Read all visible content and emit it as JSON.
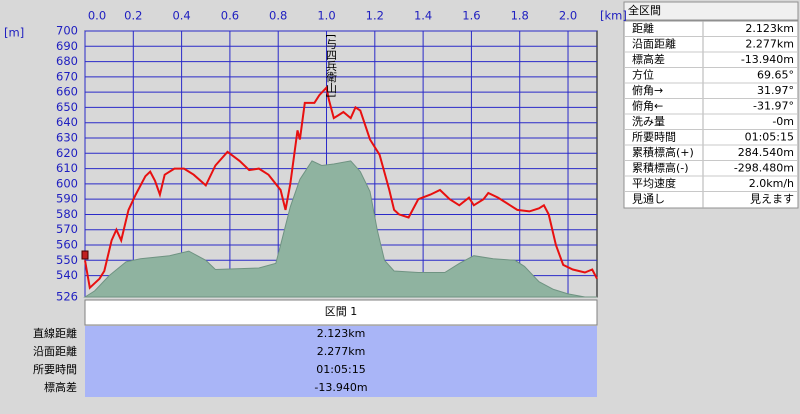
{
  "chart_data": {
    "type": "line",
    "x_unit": "[km]",
    "y_unit": "[m]",
    "xlim": [
      0,
      2.12
    ],
    "ylim": [
      526,
      700
    ],
    "xticks": [
      {
        "value": 0,
        "label": "0.0"
      },
      0.2,
      0.4,
      0.6,
      0.8,
      {
        "value": 1,
        "label": "1.0"
      },
      1.2,
      1.4,
      1.6,
      1.8,
      {
        "value": 2,
        "label": "2.0"
      }
    ],
    "yticks": [
      526,
      540,
      550,
      560,
      570,
      580,
      590,
      600,
      610,
      620,
      630,
      640,
      650,
      660,
      670,
      680,
      690,
      700
    ],
    "grid": true,
    "series": [
      {
        "color": "#8fb3a0",
        "fill": true,
        "x": [
          0,
          0.04,
          0.1,
          0.17,
          0.23,
          0.35,
          0.43,
          0.5,
          0.54,
          0.72,
          0.79,
          0.81,
          0.85,
          0.89,
          0.94,
          0.98,
          1.03,
          1.1,
          1.14,
          1.18,
          1.21,
          1.24,
          1.28,
          1.38,
          1.49,
          1.55,
          1.61,
          1.69,
          1.78,
          1.82,
          1.88,
          1.94,
          2.0,
          2.07,
          2.12
        ],
        "values": [
          526,
          530,
          540,
          549,
          551,
          553,
          556,
          550,
          544,
          545,
          548,
          560,
          585,
          603,
          615,
          612,
          613,
          615,
          608,
          595,
          570,
          550,
          543,
          542,
          542,
          548,
          553,
          551,
          550,
          546,
          536,
          531,
          528,
          526,
          526
        ]
      },
      {
        "color": "#e81010",
        "fill": false,
        "x": [
          0,
          0.02,
          0.04,
          0.06,
          0.08,
          0.11,
          0.13,
          0.15,
          0.18,
          0.21,
          0.25,
          0.27,
          0.29,
          0.31,
          0.33,
          0.37,
          0.41,
          0.45,
          0.5,
          0.54,
          0.59,
          0.64,
          0.68,
          0.72,
          0.76,
          0.81,
          0.83,
          0.85,
          0.88,
          0.89,
          0.91,
          0.95,
          0.97,
          1.0,
          1.01,
          1.03,
          1.05,
          1.07,
          1.1,
          1.12,
          1.14,
          1.18,
          1.22,
          1.26,
          1.28,
          1.3,
          1.34,
          1.38,
          1.43,
          1.47,
          1.51,
          1.55,
          1.59,
          1.61,
          1.65,
          1.67,
          1.71,
          1.76,
          1.79,
          1.84,
          1.88,
          1.9,
          1.92,
          1.95,
          1.98,
          2.02,
          2.07,
          2.1,
          2.12
        ],
        "values": [
          550,
          532,
          535,
          538,
          543,
          563,
          570,
          563,
          583,
          593,
          605,
          608,
          602,
          593,
          606,
          610,
          610,
          606,
          599,
          612,
          621,
          615,
          609,
          610,
          606,
          596,
          583,
          600,
          635,
          629,
          653,
          653,
          658,
          663,
          655,
          643,
          645,
          647,
          643,
          650,
          648,
          629,
          619,
          596,
          583,
          580,
          578,
          590,
          593,
          596,
          590,
          586,
          591,
          586,
          590,
          594,
          591,
          586,
          583,
          582,
          584,
          586,
          580,
          560,
          547,
          544,
          542,
          544,
          538
        ]
      }
    ],
    "annotations": [
      {
        "text": "[与四兵衛山]",
        "x": 1
      }
    ]
  },
  "section": {
    "title": "区間 1",
    "rows": [
      [
        "直線距離",
        "2.123km"
      ],
      [
        "沿面距離",
        "2.277km"
      ],
      [
        "所要時間",
        "01:05:15"
      ],
      [
        "標高差",
        "-13.940m"
      ]
    ]
  },
  "summary": {
    "title": "全区間",
    "rows": [
      [
        "距離",
        "2.123km"
      ],
      [
        "沿面距離",
        "2.277km"
      ],
      [
        "標高差",
        "-13.940m"
      ],
      [
        "方位",
        "69.65°"
      ],
      [
        "俯角→",
        "31.97°"
      ],
      [
        "俯角←",
        "-31.97°"
      ],
      [
        "洗み量",
        "-0m"
      ],
      [
        "所要時間",
        "01:05:15"
      ],
      [
        "累積標高(+)",
        "284.540m"
      ],
      [
        "累積標高(-)",
        "-298.480m"
      ],
      [
        "平均速度",
        "2.0km/h"
      ],
      [
        "見通し",
        "見えます"
      ]
    ]
  }
}
